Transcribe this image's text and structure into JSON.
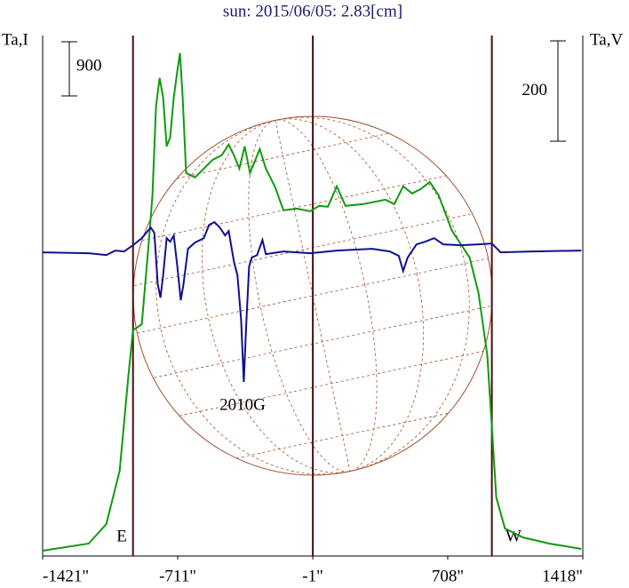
{
  "chart_data": {
    "type": "line",
    "title": "sun: 2015/06/05: 2.83[cm]",
    "y_label": "Ta,I",
    "y2_label": "Ta,V",
    "xlim": [
      -1421,
      1418
    ],
    "xticks": [
      {
        "value": -1421,
        "label": "-1421\""
      },
      {
        "value": -711,
        "label": "-711\""
      },
      {
        "value": -1,
        "label": "-1\""
      },
      {
        "value": 708,
        "label": "708\""
      },
      {
        "value": 1418,
        "label": "1418\""
      }
    ],
    "ylim": [
      0,
      8640
    ],
    "y2lim": [
      -605,
      432
    ],
    "limb_lines": [
      -946,
      -1,
      940
    ],
    "scale_bars": [
      {
        "axis": "y",
        "value": 900
      },
      {
        "axis": "y2",
        "value": 200
      }
    ],
    "annotations": [
      "E",
      "W",
      "2010G"
    ],
    "series": [
      {
        "name": "I",
        "color": "#109a10",
        "x": [
          -1421,
          -1179,
          -1086,
          -1016,
          -969,
          -946,
          -900,
          -862,
          -844,
          -825,
          -806,
          -788,
          -769,
          -751,
          -732,
          -713,
          -699,
          -685,
          -667,
          -620,
          -550,
          -527,
          -480,
          -443,
          -415,
          -387,
          -359,
          -331,
          -280,
          -248,
          -201,
          -155,
          -85,
          -15,
          32,
          78,
          125,
          171,
          264,
          381,
          427,
          474,
          521,
          567,
          614,
          660,
          730,
          823,
          870,
          916,
          940,
          963,
          1009,
          1103,
          1242,
          1410
        ],
        "values": [
          89,
          207,
          531,
          1416,
          3039,
          3747,
          3850,
          5251,
          5989,
          7464,
          7936,
          7611,
          6800,
          6947,
          7611,
          8054,
          8349,
          7611,
          6357,
          6284,
          6505,
          6579,
          6652,
          6829,
          6652,
          6431,
          6800,
          6357,
          6756,
          6431,
          6136,
          5738,
          5767,
          5723,
          5812,
          5797,
          6136,
          5812,
          5841,
          5915,
          5841,
          6136,
          6018,
          6092,
          6210,
          5989,
          5399,
          4956,
          4366,
          3334,
          2154,
          974,
          457,
          310,
          207,
          118
        ]
      },
      {
        "name": "V",
        "color": "#101090",
        "axis": "y2",
        "x": [
          -1421,
          -1179,
          -1086,
          -1039,
          -993,
          -946,
          -900,
          -853,
          -834,
          -816,
          -802,
          -788,
          -769,
          -751,
          -732,
          -713,
          -695,
          -681,
          -657,
          -620,
          -574,
          -546,
          -518,
          -490,
          -462,
          -443,
          -415,
          -397,
          -378,
          -364,
          -350,
          -336,
          -322,
          -294,
          -266,
          -248,
          -155,
          -15,
          125,
          311,
          404,
          451,
          474,
          497,
          544,
          590,
          637,
          684,
          777,
          870,
          940,
          986,
          1149,
          1410
        ],
        "values": [
          0,
          -1.8,
          -5.3,
          3.5,
          1.8,
          14.2,
          28.3,
          49.6,
          38.9,
          -63.7,
          -90.3,
          -46,
          28.3,
          21.2,
          33.6,
          -28.3,
          -95.6,
          -63.7,
          7.1,
          19.5,
          28.3,
          54.9,
          60.2,
          49.6,
          33.6,
          42.5,
          -19.5,
          -46,
          -134.5,
          -258.4,
          -134.5,
          -28.3,
          -10.6,
          -5.3,
          24.8,
          -3.5,
          1.8,
          -1.8,
          3.5,
          7.1,
          1.8,
          -7.1,
          -37.2,
          -10.6,
          15.9,
          21.2,
          28.3,
          15.9,
          14.2,
          15.9,
          17.7,
          0,
          1.8,
          3.5
        ]
      }
    ]
  }
}
